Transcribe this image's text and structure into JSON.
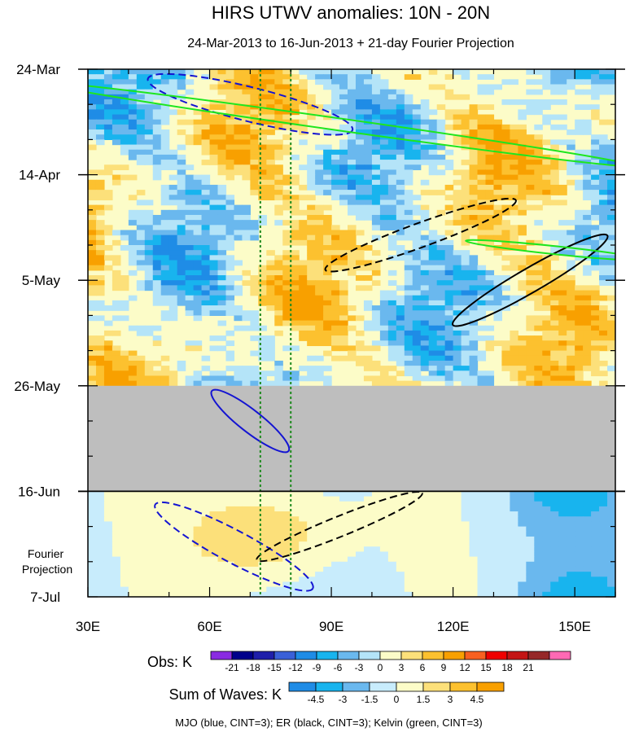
{
  "chart_data": {
    "type": "heatmap",
    "title": "HIRS UTWV anomalies: 10N - 20N",
    "subtitle": "24-Mar-2013 to 16-Jun-2013 + 21-day Fourier Projection",
    "x_axis": {
      "ticks": [
        "30E",
        "60E",
        "90E",
        "120E",
        "150E"
      ],
      "tick_values": [
        30,
        60,
        90,
        120,
        150
      ],
      "range": [
        30,
        160
      ]
    },
    "y_axis": {
      "ticks": [
        "24-Mar",
        "14-Apr",
        "5-May",
        "26-May",
        "16-Jun",
        "7-Jul"
      ],
      "tick_days": [
        0,
        21,
        42,
        63,
        84,
        105
      ],
      "range_days": [
        0,
        105
      ],
      "direction": "time-increasing-downward"
    },
    "projection_label": "Fourier\nProjection",
    "observation_end_day": 84,
    "missing_data_days": [
      63,
      84
    ],
    "vertical_reference_lines": {
      "longitudes": [
        72.5,
        80
      ],
      "color": "#1e8a1e",
      "style": "dotted"
    },
    "legends": [
      {
        "name": "Obs: K",
        "labels": [
          "-21",
          "-18",
          "-15",
          "-12",
          "-9",
          "-6",
          "-3",
          "0",
          "3",
          "6",
          "9",
          "12",
          "15",
          "18",
          "21"
        ],
        "colors": [
          "#8a2be2",
          "#00008b",
          "#1f1faa",
          "#3a60d8",
          "#1f8ce6",
          "#18b4ee",
          "#6ab8ee",
          "#b4e4f8",
          "#fcfcc8",
          "#fce07a",
          "#fcc12f",
          "#f8a000",
          "#f86020",
          "#f00000",
          "#c41414",
          "#962828",
          "#ff69b4"
        ]
      },
      {
        "name": "Sum of Waves: K",
        "labels": [
          "-4.5",
          "-3",
          "-1.5",
          "0",
          "1.5",
          "3",
          "4.5"
        ],
        "colors": [
          "#1f8ce6",
          "#18b4ee",
          "#6ab8ee",
          "#c8ecfc",
          "#fcfcc8",
          "#fce07a",
          "#fcc12f",
          "#f8a000"
        ]
      }
    ],
    "contour_note": "MJO (blue, CINT=3); ER (black, CINT=3); Kelvin (green, CINT=3)",
    "contour_colors": {
      "MJO": "#1414d2",
      "ER": "#000000",
      "Kelvin": "#1ee61e"
    }
  }
}
